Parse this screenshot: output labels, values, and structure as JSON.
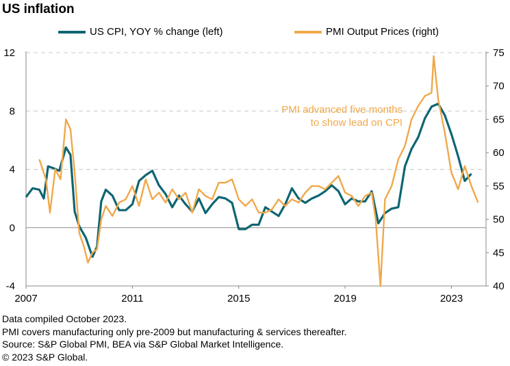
{
  "title": "US inflation",
  "legend": {
    "cpi": "US CPI, YOY % change (left)",
    "pmi": "PMI Output Prices (right)"
  },
  "colors": {
    "cpi": "#0e6572",
    "pmi": "#f0a84a",
    "axis": "#888888",
    "grid": "#c8c8c8"
  },
  "footer": [
    "Data compiled October 2023.",
    "PMI covers manufacturing only pre-2009 but manufacturing & services thereafter.",
    "Source: S&P Global PMI, BEA via S&P Global Market Intelligence.",
    "© 2023 S&P Global."
  ],
  "chart_data": {
    "type": "line",
    "title": "US inflation",
    "x_ticks": [
      "2007",
      "2011",
      "2015",
      "2019",
      "2023"
    ],
    "y_left": {
      "lim": [
        -4,
        12
      ],
      "ticks": [
        "-4",
        "0",
        "4",
        "8",
        "12"
      ]
    },
    "y_right": {
      "lim": [
        40,
        75
      ],
      "ticks": [
        "40",
        "45",
        "50",
        "55",
        "60",
        "65",
        "70",
        "75"
      ]
    },
    "grid": "horizontal dashed",
    "legend_position": "top",
    "annotation": {
      "lines": [
        "PMI advanced five months",
        "to show lead on CPI"
      ]
    },
    "series": [
      {
        "name": "US CPI, YOY % change (left)",
        "axis": "left",
        "points": [
          [
            2007.0,
            2.1
          ],
          [
            2007.25,
            2.7
          ],
          [
            2007.5,
            2.6
          ],
          [
            2007.67,
            2.0
          ],
          [
            2007.83,
            4.2
          ],
          [
            2008.0,
            4.1
          ],
          [
            2008.25,
            3.9
          ],
          [
            2008.5,
            5.5
          ],
          [
            2008.67,
            5.0
          ],
          [
            2008.83,
            1.1
          ],
          [
            2009.0,
            0.1
          ],
          [
            2009.25,
            -0.7
          ],
          [
            2009.5,
            -2.0
          ],
          [
            2009.67,
            -1.3
          ],
          [
            2009.83,
            1.8
          ],
          [
            2010.0,
            2.6
          ],
          [
            2010.25,
            2.2
          ],
          [
            2010.5,
            1.2
          ],
          [
            2010.75,
            1.2
          ],
          [
            2011.0,
            1.6
          ],
          [
            2011.25,
            3.2
          ],
          [
            2011.5,
            3.6
          ],
          [
            2011.75,
            3.9
          ],
          [
            2012.0,
            2.9
          ],
          [
            2012.25,
            2.3
          ],
          [
            2012.5,
            1.4
          ],
          [
            2012.75,
            2.2
          ],
          [
            2013.0,
            1.6
          ],
          [
            2013.25,
            1.1
          ],
          [
            2013.5,
            2.0
          ],
          [
            2013.75,
            1.0
          ],
          [
            2014.0,
            1.6
          ],
          [
            2014.25,
            2.1
          ],
          [
            2014.5,
            2.0
          ],
          [
            2014.75,
            1.7
          ],
          [
            2015.0,
            -0.1
          ],
          [
            2015.25,
            -0.1
          ],
          [
            2015.5,
            0.2
          ],
          [
            2015.75,
            0.2
          ],
          [
            2016.0,
            1.4
          ],
          [
            2016.25,
            1.1
          ],
          [
            2016.5,
            0.8
          ],
          [
            2016.75,
            1.6
          ],
          [
            2017.0,
            2.7
          ],
          [
            2017.25,
            2.0
          ],
          [
            2017.5,
            1.7
          ],
          [
            2017.75,
            2.0
          ],
          [
            2018.0,
            2.2
          ],
          [
            2018.25,
            2.5
          ],
          [
            2018.5,
            2.9
          ],
          [
            2018.75,
            2.5
          ],
          [
            2019.0,
            1.6
          ],
          [
            2019.25,
            2.0
          ],
          [
            2019.5,
            1.8
          ],
          [
            2019.75,
            1.8
          ],
          [
            2020.0,
            2.5
          ],
          [
            2020.25,
            0.3
          ],
          [
            2020.5,
            1.0
          ],
          [
            2020.75,
            1.3
          ],
          [
            2021.0,
            1.4
          ],
          [
            2021.25,
            4.2
          ],
          [
            2021.5,
            5.4
          ],
          [
            2021.75,
            6.2
          ],
          [
            2022.0,
            7.5
          ],
          [
            2022.25,
            8.3
          ],
          [
            2022.5,
            8.5
          ],
          [
            2022.75,
            7.7
          ],
          [
            2023.0,
            6.4
          ],
          [
            2023.25,
            4.9
          ],
          [
            2023.5,
            3.2
          ],
          [
            2023.75,
            3.7
          ]
        ]
      },
      {
        "name": "PMI Output Prices (right)",
        "axis": "right",
        "points": [
          [
            2007.5,
            59.0
          ],
          [
            2007.75,
            56.0
          ],
          [
            2007.9,
            51.0
          ],
          [
            2008.1,
            57.5
          ],
          [
            2008.3,
            56.0
          ],
          [
            2008.5,
            65.0
          ],
          [
            2008.67,
            63.5
          ],
          [
            2008.83,
            57.0
          ],
          [
            2009.0,
            48.0
          ],
          [
            2009.17,
            46.0
          ],
          [
            2009.33,
            43.5
          ],
          [
            2009.5,
            45.0
          ],
          [
            2009.67,
            45.5
          ],
          [
            2009.83,
            50.0
          ],
          [
            2010.0,
            52.0
          ],
          [
            2010.25,
            50.5
          ],
          [
            2010.5,
            52.5
          ],
          [
            2010.75,
            53.0
          ],
          [
            2011.0,
            55.0
          ],
          [
            2011.25,
            52.0
          ],
          [
            2011.5,
            56.0
          ],
          [
            2011.75,
            53.0
          ],
          [
            2012.0,
            54.0
          ],
          [
            2012.25,
            52.5
          ],
          [
            2012.5,
            54.5
          ],
          [
            2012.75,
            53.0
          ],
          [
            2013.0,
            54.0
          ],
          [
            2013.25,
            51.0
          ],
          [
            2013.5,
            54.5
          ],
          [
            2013.75,
            53.5
          ],
          [
            2014.0,
            53.0
          ],
          [
            2014.25,
            55.5
          ],
          [
            2014.5,
            55.5
          ],
          [
            2014.75,
            56.0
          ],
          [
            2015.0,
            53.0
          ],
          [
            2015.25,
            52.0
          ],
          [
            2015.5,
            53.0
          ],
          [
            2015.75,
            51.0
          ],
          [
            2016.0,
            51.0
          ],
          [
            2016.25,
            51.5
          ],
          [
            2016.5,
            53.0
          ],
          [
            2016.75,
            52.0
          ],
          [
            2017.0,
            53.0
          ],
          [
            2017.25,
            52.5
          ],
          [
            2017.5,
            54.0
          ],
          [
            2017.75,
            55.0
          ],
          [
            2018.0,
            55.0
          ],
          [
            2018.25,
            54.5
          ],
          [
            2018.5,
            55.5
          ],
          [
            2018.75,
            56.5
          ],
          [
            2019.0,
            54.0
          ],
          [
            2019.25,
            53.5
          ],
          [
            2019.5,
            52.0
          ],
          [
            2019.75,
            53.5
          ],
          [
            2020.0,
            54.0
          ],
          [
            2020.15,
            50.0
          ],
          [
            2020.33,
            40.0
          ],
          [
            2020.5,
            53.0
          ],
          [
            2020.75,
            55.0
          ],
          [
            2021.0,
            59.0
          ],
          [
            2021.25,
            61.0
          ],
          [
            2021.5,
            65.0
          ],
          [
            2021.75,
            67.0
          ],
          [
            2022.0,
            68.5
          ],
          [
            2022.25,
            69.0
          ],
          [
            2022.33,
            74.5
          ],
          [
            2022.5,
            68.0
          ],
          [
            2022.75,
            63.0
          ],
          [
            2023.0,
            57.0
          ],
          [
            2023.25,
            54.5
          ],
          [
            2023.5,
            58.0
          ],
          [
            2023.75,
            55.0
          ],
          [
            2024.0,
            52.5
          ]
        ]
      }
    ]
  }
}
